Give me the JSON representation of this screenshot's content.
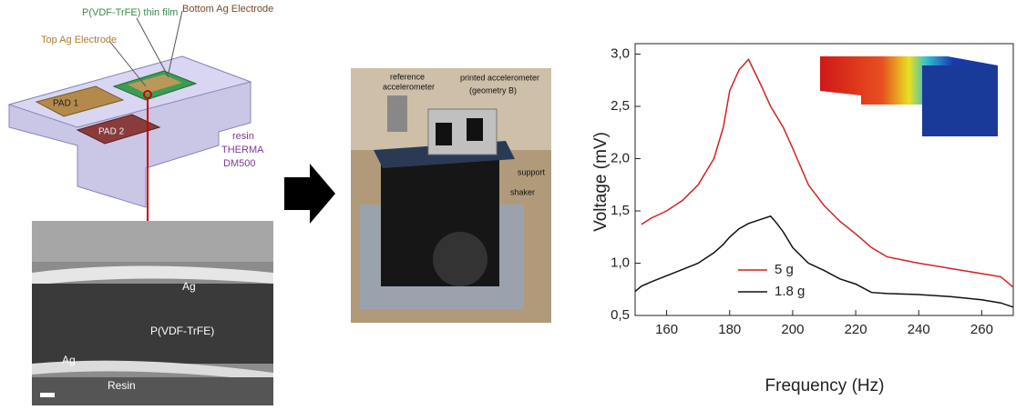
{
  "diagram": {
    "labels": [
      "P(VDF-TrFE) thin film",
      "Bottom Ag Electrode",
      "Top Ag Electrode",
      "PAD 1",
      "PAD 2",
      "resin",
      "THERMA",
      "DM500"
    ]
  },
  "micrograph": {
    "labels": [
      "Ag",
      "P(VDF-TrFE)",
      "Ag",
      "Resin"
    ]
  },
  "photo": {
    "labels": [
      "reference",
      "accelerometer",
      "printed accelerometer",
      "(geometry B)",
      "support",
      "shaker"
    ]
  },
  "chart_data": {
    "type": "line",
    "x_label": "Frequency (Hz)",
    "y_label": "Voltage (mV)",
    "x": [
      150,
      152,
      155,
      160,
      165,
      170,
      175,
      178,
      180,
      183,
      186,
      190,
      193,
      195,
      197,
      200,
      205,
      210,
      215,
      220,
      225,
      230,
      240,
      250,
      260,
      266,
      270
    ],
    "series": [
      {
        "name": "5 g",
        "color": "#d42020",
        "values": [
          null,
          1.37,
          1.43,
          1.5,
          1.6,
          1.75,
          2.0,
          2.3,
          2.65,
          2.85,
          2.95,
          2.7,
          2.5,
          2.4,
          2.3,
          2.1,
          1.75,
          1.55,
          1.4,
          1.28,
          1.15,
          1.06,
          1.0,
          0.95,
          0.9,
          0.87,
          0.77
        ]
      },
      {
        "name": "1.8 g",
        "color": "#111111",
        "values": [
          0.73,
          0.78,
          0.82,
          0.88,
          0.94,
          1.0,
          1.1,
          1.18,
          1.25,
          1.33,
          1.38,
          1.42,
          1.45,
          1.38,
          1.3,
          1.15,
          1.0,
          0.93,
          0.85,
          0.8,
          0.72,
          0.71,
          0.7,
          0.68,
          0.65,
          0.62,
          0.58
        ]
      }
    ],
    "xlim": [
      150,
      270
    ],
    "xticks": [
      160,
      180,
      200,
      220,
      240,
      260
    ],
    "ylim": [
      0.5,
      3.1
    ],
    "yticks": [
      {
        "value": 0.5,
        "label": "0,5"
      },
      {
        "value": 1.0,
        "label": "1,0"
      },
      {
        "value": 1.5,
        "label": "1,5"
      },
      {
        "value": 2.0,
        "label": "2,0"
      },
      {
        "value": 2.5,
        "label": "2,5"
      },
      {
        "value": 3.0,
        "label": "3,0"
      }
    ],
    "legend": "lower-left"
  }
}
